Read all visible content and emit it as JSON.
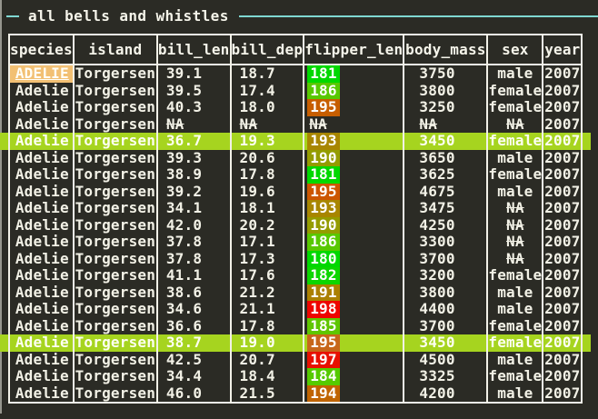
{
  "panel": {
    "title": "all bells and whistles"
  },
  "colors": {
    "background": "#2b2b25",
    "frame_accent": "#7fd8d2",
    "table_border": "#f2f1e8",
    "text": "#f2f1e6",
    "row_highlight": "#a6d41f",
    "selected_cell_bg": "#f2c073",
    "window_edge": "#96968e"
  },
  "table": {
    "columns": [
      {
        "key": "species",
        "label": "species",
        "width": 69,
        "align": "right"
      },
      {
        "key": "island",
        "label": "island",
        "width": 92,
        "align": "center"
      },
      {
        "key": "bill_len",
        "label": "bill_len",
        "width": 80,
        "align": "num"
      },
      {
        "key": "bill_dep",
        "label": "bill_dep",
        "width": 79,
        "align": "num"
      },
      {
        "key": "flipper_len",
        "label": "flipper_len",
        "width": 109,
        "align": "flipper"
      },
      {
        "key": "body_mass",
        "label": "body_mass",
        "width": 92,
        "align": "mass"
      },
      {
        "key": "sex",
        "label": "sex",
        "width": 61,
        "align": "center"
      },
      {
        "key": "year",
        "label": "year",
        "width": 43,
        "align": "center"
      }
    ],
    "rows": [
      {
        "species": "ADELIE",
        "island": "Torgersen",
        "bill_len": "39.1",
        "bill_dep": "18.7",
        "flipper_len": "181",
        "flipper_color": "#00d800",
        "body_mass": "3750",
        "sex": "male",
        "year": "2007",
        "highlighted": false,
        "selected_cell": "species"
      },
      {
        "species": "Adelie",
        "island": "Torgersen",
        "bill_len": "39.5",
        "bill_dep": "17.4",
        "flipper_len": "186",
        "flipper_color": "#58c800",
        "body_mass": "3800",
        "sex": "female",
        "year": "2007",
        "highlighted": false,
        "selected_cell": null
      },
      {
        "species": "Adelie",
        "island": "Torgersen",
        "bill_len": "40.3",
        "bill_dep": "18.0",
        "flipper_len": "195",
        "flipper_color": "#c75e00",
        "body_mass": "3250",
        "sex": "female",
        "year": "2007",
        "highlighted": false,
        "selected_cell": null
      },
      {
        "species": "Adelie",
        "island": "Torgersen",
        "bill_len": "NA",
        "bill_dep": "NA",
        "flipper_len": "NA",
        "flipper_color": null,
        "body_mass": "NA",
        "sex": "NA",
        "year": "2007",
        "highlighted": false,
        "selected_cell": null
      },
      {
        "species": "Adelie",
        "island": "Torgersen",
        "bill_len": "36.7",
        "bill_dep": "19.3",
        "flipper_len": "193",
        "flipper_color": "#a88600",
        "body_mass": "3450",
        "sex": "female",
        "year": "2007",
        "highlighted": true,
        "selected_cell": null
      },
      {
        "species": "Adelie",
        "island": "Torgersen",
        "bill_len": "39.3",
        "bill_dep": "20.6",
        "flipper_len": "190",
        "flipper_color": "#949c00",
        "body_mass": "3650",
        "sex": "male",
        "year": "2007",
        "highlighted": false,
        "selected_cell": null
      },
      {
        "species": "Adelie",
        "island": "Torgersen",
        "bill_len": "38.9",
        "bill_dep": "17.8",
        "flipper_len": "181",
        "flipper_color": "#00d800",
        "body_mass": "3625",
        "sex": "female",
        "year": "2007",
        "highlighted": false,
        "selected_cell": null
      },
      {
        "species": "Adelie",
        "island": "Torgersen",
        "bill_len": "39.2",
        "bill_dep": "19.6",
        "flipper_len": "195",
        "flipper_color": "#cc5600",
        "body_mass": "4675",
        "sex": "male",
        "year": "2007",
        "highlighted": false,
        "selected_cell": null
      },
      {
        "species": "Adelie",
        "island": "Torgersen",
        "bill_len": "34.1",
        "bill_dep": "18.1",
        "flipper_len": "193",
        "flipper_color": "#a88600",
        "body_mass": "3475",
        "sex": "NA",
        "year": "2007",
        "highlighted": false,
        "selected_cell": null
      },
      {
        "species": "Adelie",
        "island": "Torgersen",
        "bill_len": "42.0",
        "bill_dep": "20.2",
        "flipper_len": "190",
        "flipper_color": "#949c00",
        "body_mass": "4250",
        "sex": "NA",
        "year": "2007",
        "highlighted": false,
        "selected_cell": null
      },
      {
        "species": "Adelie",
        "island": "Torgersen",
        "bill_len": "37.8",
        "bill_dep": "17.1",
        "flipper_len": "186",
        "flipper_color": "#58c800",
        "body_mass": "3300",
        "sex": "NA",
        "year": "2007",
        "highlighted": false,
        "selected_cell": null
      },
      {
        "species": "Adelie",
        "island": "Torgersen",
        "bill_len": "37.8",
        "bill_dep": "17.3",
        "flipper_len": "180",
        "flipper_color": "#00d800",
        "body_mass": "3700",
        "sex": "NA",
        "year": "2007",
        "highlighted": false,
        "selected_cell": null
      },
      {
        "species": "Adelie",
        "island": "Torgersen",
        "bill_len": "41.1",
        "bill_dep": "17.6",
        "flipper_len": "182",
        "flipper_color": "#0cd600",
        "body_mass": "3200",
        "sex": "female",
        "year": "2007",
        "highlighted": false,
        "selected_cell": null
      },
      {
        "species": "Adelie",
        "island": "Torgersen",
        "bill_len": "38.6",
        "bill_dep": "21.2",
        "flipper_len": "191",
        "flipper_color": "#ab8000",
        "body_mass": "3800",
        "sex": "male",
        "year": "2007",
        "highlighted": false,
        "selected_cell": null
      },
      {
        "species": "Adelie",
        "island": "Torgersen",
        "bill_len": "34.6",
        "bill_dep": "21.1",
        "flipper_len": "198",
        "flipper_color": "#ee0500",
        "body_mass": "4400",
        "sex": "male",
        "year": "2007",
        "highlighted": false,
        "selected_cell": null
      },
      {
        "species": "Adelie",
        "island": "Torgersen",
        "bill_len": "36.6",
        "bill_dep": "17.8",
        "flipper_len": "185",
        "flipper_color": "#5fc600",
        "body_mass": "3700",
        "sex": "female",
        "year": "2007",
        "highlighted": false,
        "selected_cell": null
      },
      {
        "species": "Adelie",
        "island": "Torgersen",
        "bill_len": "38.7",
        "bill_dep": "19.0",
        "flipper_len": "195",
        "flipper_color": "#c7661a",
        "body_mass": "3450",
        "sex": "female",
        "year": "2007",
        "highlighted": true,
        "selected_cell": null
      },
      {
        "species": "Adelie",
        "island": "Torgersen",
        "bill_len": "42.5",
        "bill_dep": "20.7",
        "flipper_len": "197",
        "flipper_color": "#e81000",
        "body_mass": "4500",
        "sex": "male",
        "year": "2007",
        "highlighted": false,
        "selected_cell": null
      },
      {
        "species": "Adelie",
        "island": "Torgersen",
        "bill_len": "34.4",
        "bill_dep": "18.4",
        "flipper_len": "184",
        "flipper_color": "#55ca00",
        "body_mass": "3325",
        "sex": "female",
        "year": "2007",
        "highlighted": false,
        "selected_cell": null
      },
      {
        "species": "Adelie",
        "island": "Torgersen",
        "bill_len": "46.0",
        "bill_dep": "21.5",
        "flipper_len": "194",
        "flipper_color": "#c06400",
        "body_mass": "4200",
        "sex": "male",
        "year": "2007",
        "highlighted": false,
        "selected_cell": null
      }
    ]
  }
}
